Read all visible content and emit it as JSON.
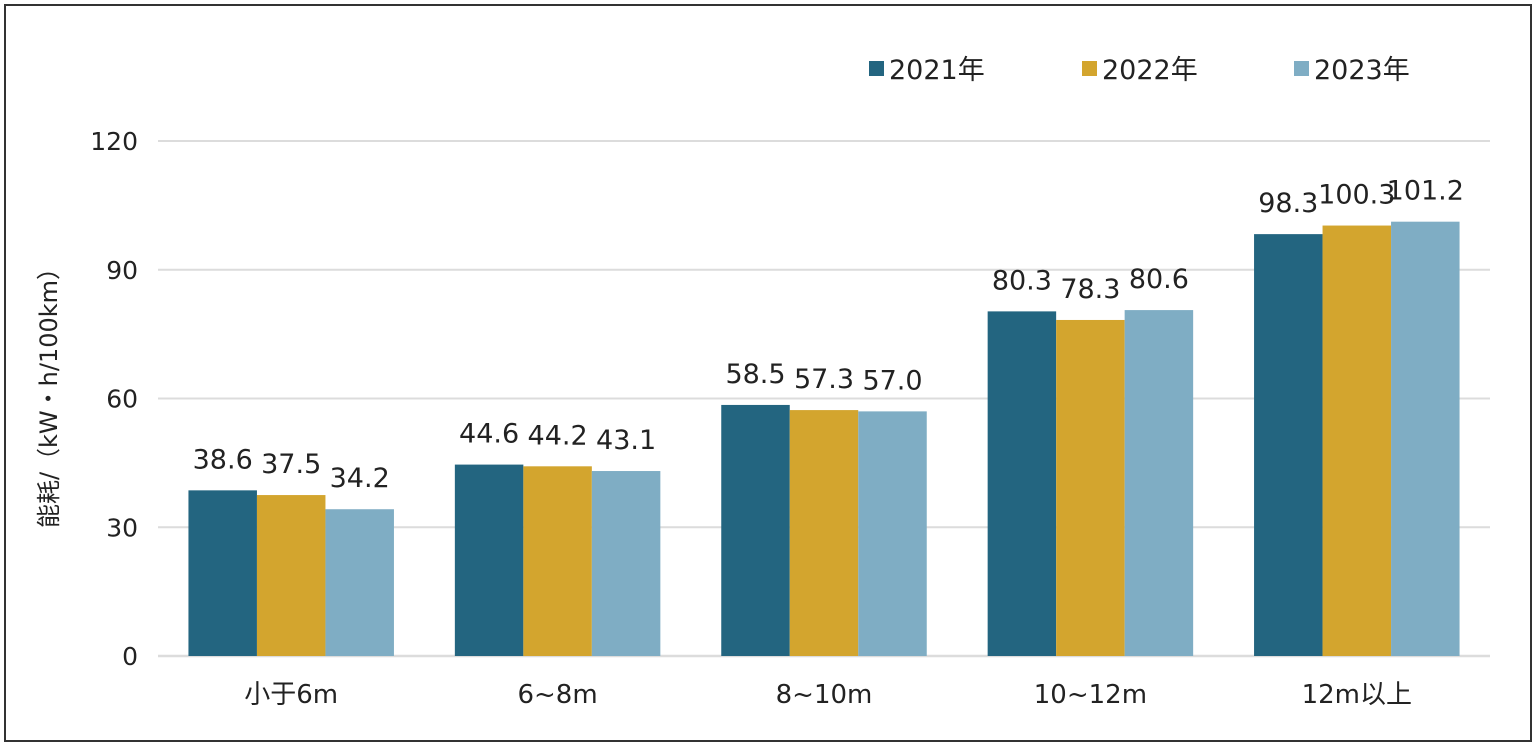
{
  "chart_data": {
    "type": "bar",
    "title": "",
    "xlabel": "",
    "ylabel": "能耗/（kW・h/100km）",
    "categories": [
      "小于6m",
      "6~8m",
      "8~10m",
      "10~12m",
      "12m以上"
    ],
    "series": [
      {
        "name": "2021年",
        "color": "#236580",
        "values": [
          38.6,
          44.6,
          58.5,
          80.3,
          98.3
        ],
        "labels": [
          "38.6",
          "44.6",
          "58.5",
          "80.3",
          "98.3"
        ]
      },
      {
        "name": "2022年",
        "color": "#D3A52E",
        "values": [
          37.5,
          44.2,
          57.3,
          78.3,
          100.3
        ],
        "labels": [
          "37.5",
          "44.2",
          "57.3",
          "78.3",
          "100.3"
        ]
      },
      {
        "name": "2023年",
        "color": "#7FADC4",
        "values": [
          34.2,
          43.1,
          57.0,
          80.6,
          101.2
        ],
        "labels": [
          "34.2",
          "43.1",
          "57.0",
          "80.6",
          "101.2"
        ]
      }
    ],
    "ylim": [
      0,
      120
    ],
    "yticks": [
      "0",
      "30",
      "60",
      "90",
      "120"
    ],
    "grid": true,
    "legend_position": "top-right"
  },
  "style": {
    "grid_color": "#DCDCDC",
    "border_color": "#333333",
    "text_color": "#222222"
  }
}
